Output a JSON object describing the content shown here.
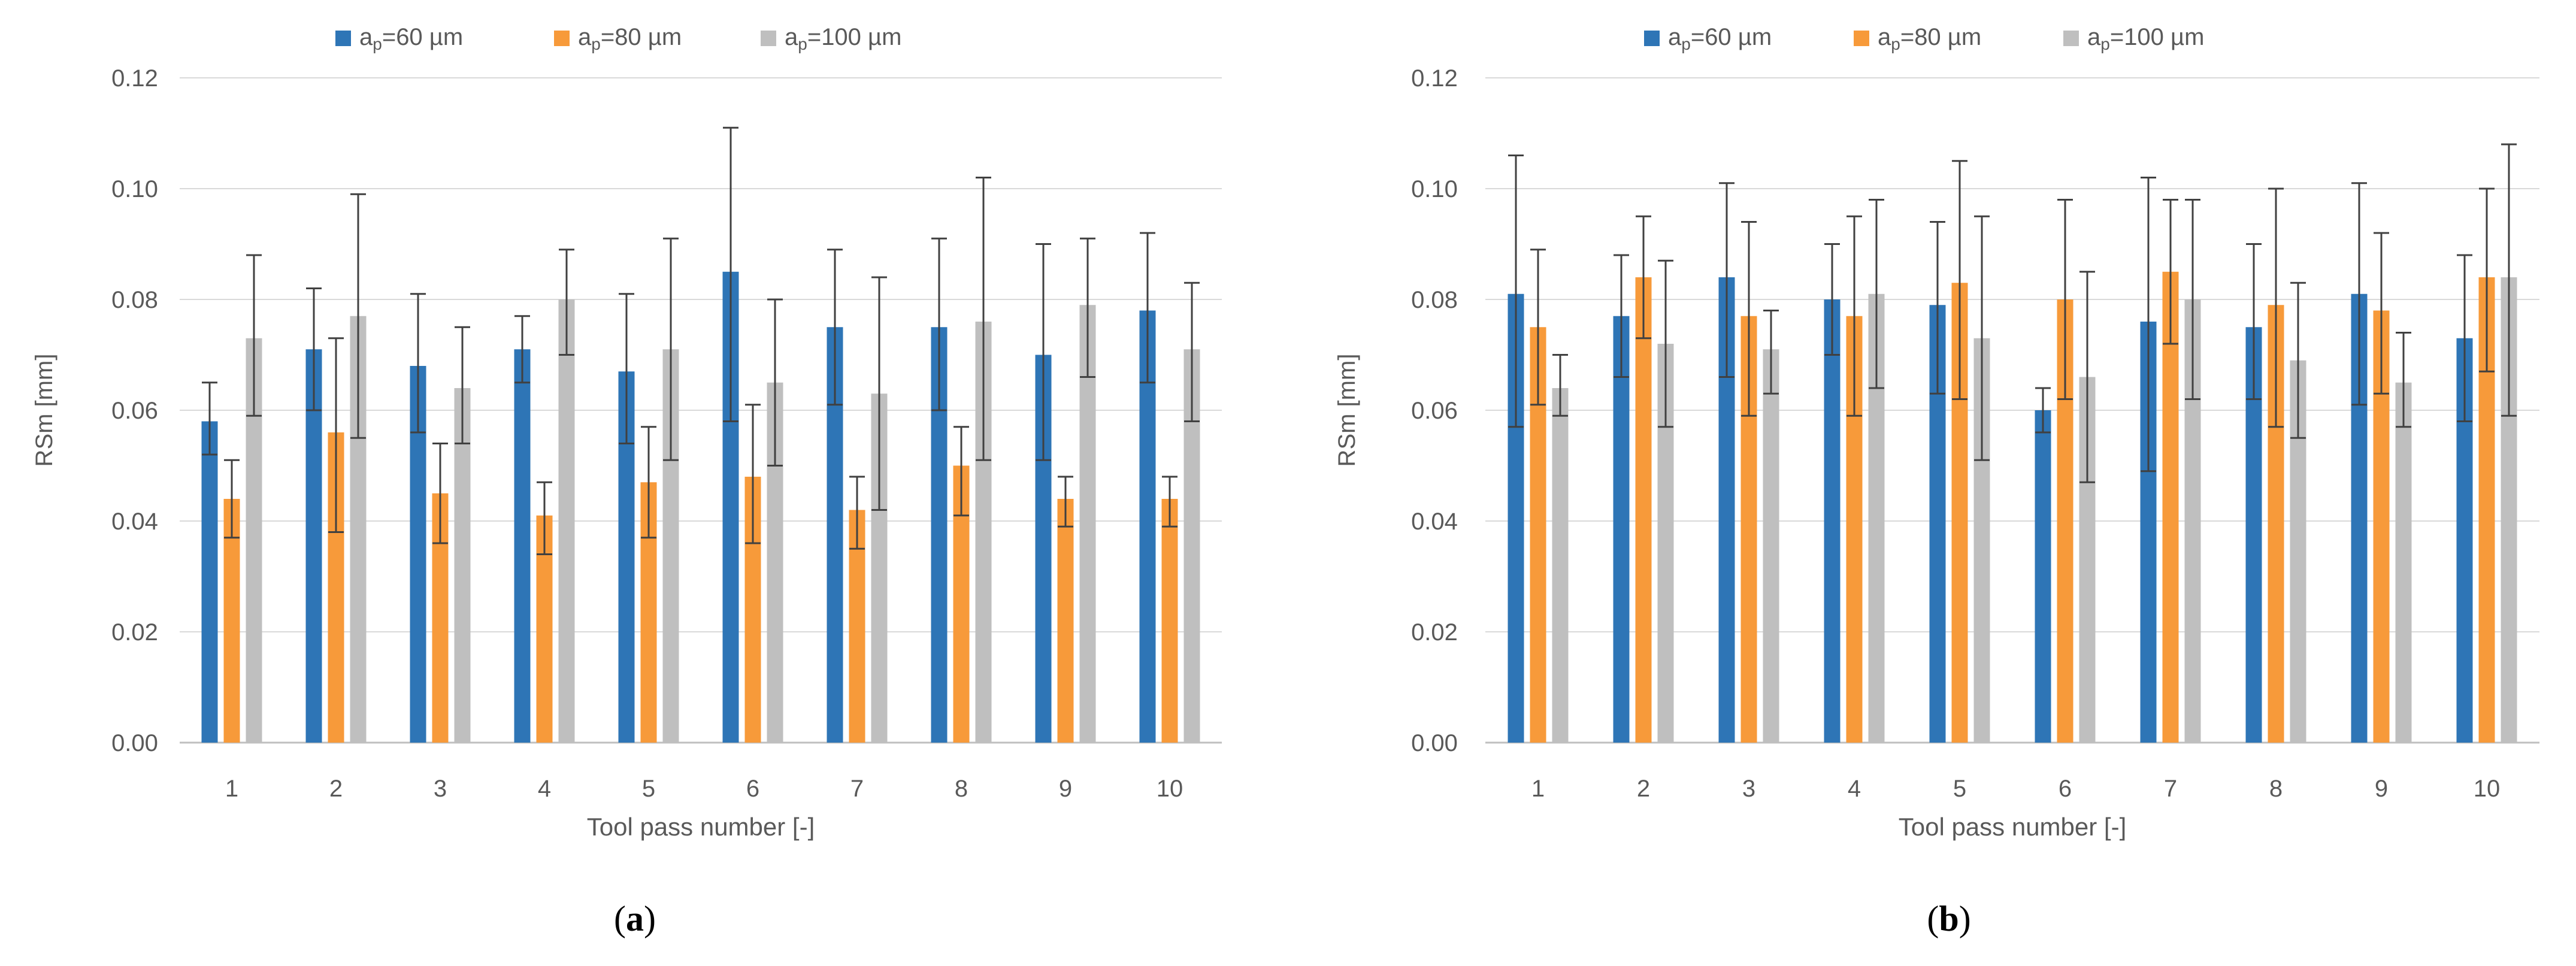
{
  "colors": {
    "series": [
      "#2E75B6",
      "#F79A3A",
      "#BFBFBF"
    ],
    "axis_text": "#595959",
    "grid": "#D9D9D9",
    "error_bar": "#404040"
  },
  "panels": [
    {
      "label_open": "(",
      "label_letter": "a",
      "label_close": ")"
    },
    {
      "label_open": "(",
      "label_letter": "b",
      "label_close": ")"
    }
  ],
  "chart_data": [
    {
      "type": "bar",
      "panel": "a",
      "xlabel": "Tool pass number [-]",
      "ylabel": "RSm [mm]",
      "ylim": [
        0,
        0.12
      ],
      "yticks": [
        "0.00",
        "0.02",
        "0.04",
        "0.06",
        "0.08",
        "0.10",
        "0.12"
      ],
      "grid": true,
      "legend_position": "top",
      "categories": [
        "1",
        "2",
        "3",
        "4",
        "5",
        "6",
        "7",
        "8",
        "9",
        "10"
      ],
      "series": [
        {
          "name_prefix": "a",
          "name_sub": "p",
          "name_suffix": "=60 µm",
          "values": [
            0.058,
            0.071,
            0.068,
            0.071,
            0.067,
            0.085,
            0.075,
            0.075,
            0.07,
            0.078
          ],
          "err_low": [
            0.052,
            0.06,
            0.056,
            0.065,
            0.054,
            0.058,
            0.061,
            0.06,
            0.051,
            0.065
          ],
          "err_high": [
            0.065,
            0.082,
            0.081,
            0.077,
            0.081,
            0.111,
            0.089,
            0.091,
            0.09,
            0.092
          ]
        },
        {
          "name_prefix": "a",
          "name_sub": "p",
          "name_suffix": "=80 µm",
          "values": [
            0.044,
            0.056,
            0.045,
            0.041,
            0.047,
            0.048,
            0.042,
            0.05,
            0.044,
            0.044
          ],
          "err_low": [
            0.037,
            0.038,
            0.036,
            0.034,
            0.037,
            0.036,
            0.035,
            0.041,
            0.039,
            0.039
          ],
          "err_high": [
            0.051,
            0.073,
            0.054,
            0.047,
            0.057,
            0.061,
            0.048,
            0.057,
            0.048,
            0.048
          ]
        },
        {
          "name_prefix": "a",
          "name_sub": "p",
          "name_suffix": "=100 µm",
          "values": [
            0.073,
            0.077,
            0.064,
            0.08,
            0.071,
            0.065,
            0.063,
            0.076,
            0.079,
            0.071
          ],
          "err_low": [
            0.059,
            0.055,
            0.054,
            0.07,
            0.051,
            0.05,
            0.042,
            0.051,
            0.066,
            0.058
          ],
          "err_high": [
            0.088,
            0.099,
            0.075,
            0.089,
            0.091,
            0.08,
            0.084,
            0.102,
            0.091,
            0.083
          ]
        }
      ]
    },
    {
      "type": "bar",
      "panel": "b",
      "xlabel": "Tool pass number [-]",
      "ylabel": "RSm [mm]",
      "ylim": [
        0,
        0.12
      ],
      "yticks": [
        "0.00",
        "0.02",
        "0.04",
        "0.06",
        "0.08",
        "0.10",
        "0.12"
      ],
      "grid": true,
      "legend_position": "top",
      "categories": [
        "1",
        "2",
        "3",
        "4",
        "5",
        "6",
        "7",
        "8",
        "9",
        "10"
      ],
      "series": [
        {
          "name_prefix": "a",
          "name_sub": "p",
          "name_suffix": "=60 µm",
          "values": [
            0.081,
            0.077,
            0.084,
            0.08,
            0.079,
            0.06,
            0.076,
            0.075,
            0.081,
            0.073
          ],
          "err_low": [
            0.057,
            0.066,
            0.066,
            0.07,
            0.063,
            0.056,
            0.049,
            0.062,
            0.061,
            0.058
          ],
          "err_high": [
            0.106,
            0.088,
            0.101,
            0.09,
            0.094,
            0.064,
            0.102,
            0.09,
            0.101,
            0.088
          ]
        },
        {
          "name_prefix": "a",
          "name_sub": "p",
          "name_suffix": "=80 µm",
          "values": [
            0.075,
            0.084,
            0.077,
            0.077,
            0.083,
            0.08,
            0.085,
            0.079,
            0.078,
            0.084
          ],
          "err_low": [
            0.061,
            0.073,
            0.059,
            0.059,
            0.062,
            0.062,
            0.072,
            0.057,
            0.063,
            0.067
          ],
          "err_high": [
            0.089,
            0.095,
            0.094,
            0.095,
            0.105,
            0.098,
            0.098,
            0.1,
            0.092,
            0.1
          ]
        },
        {
          "name_prefix": "a",
          "name_sub": "p",
          "name_suffix": "=100 µm",
          "values": [
            0.064,
            0.072,
            0.071,
            0.081,
            0.073,
            0.066,
            0.08,
            0.069,
            0.065,
            0.084
          ],
          "err_low": [
            0.059,
            0.057,
            0.063,
            0.064,
            0.051,
            0.047,
            0.062,
            0.055,
            0.057,
            0.059
          ],
          "err_high": [
            0.07,
            0.087,
            0.078,
            0.098,
            0.095,
            0.085,
            0.098,
            0.083,
            0.074,
            0.108
          ]
        }
      ]
    }
  ]
}
